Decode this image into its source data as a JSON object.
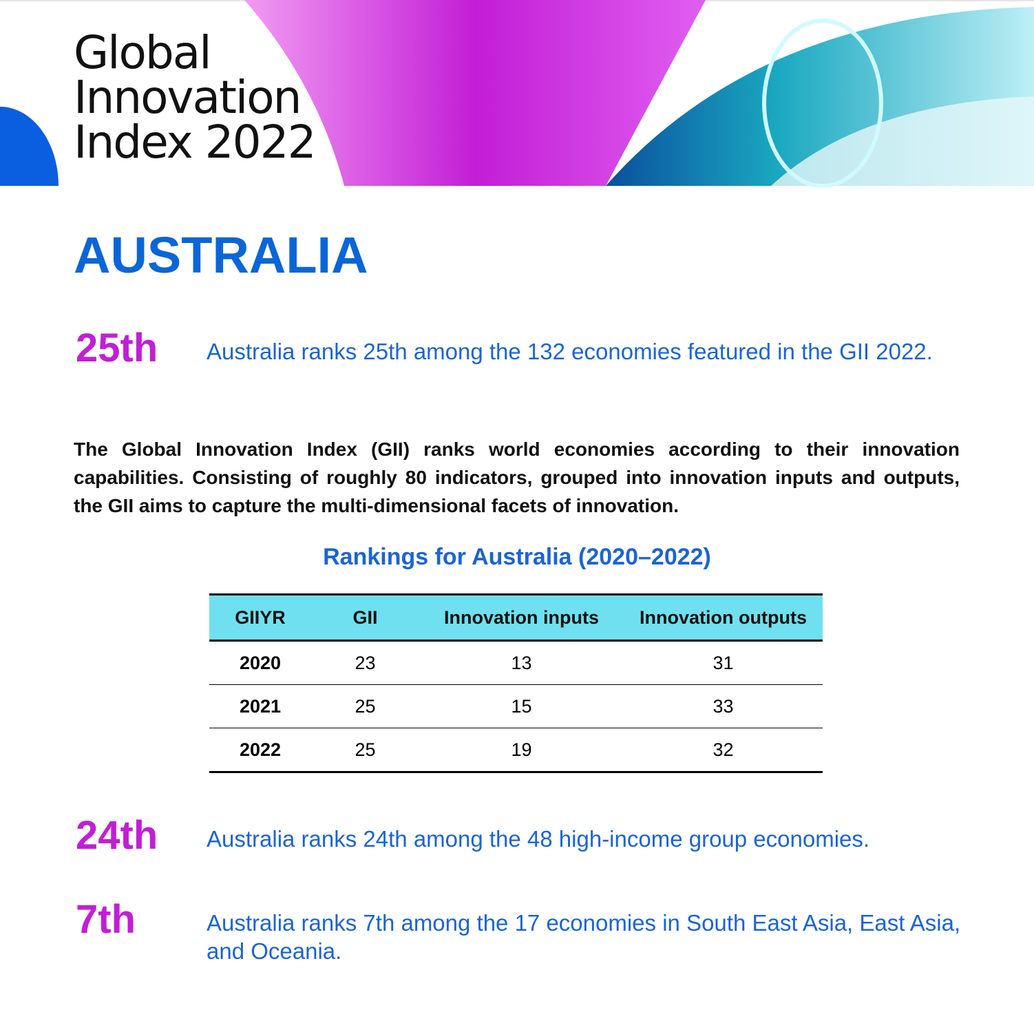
{
  "header": {
    "title_lines": [
      "Global",
      "Innovation",
      "Index 2022"
    ]
  },
  "country": "AUSTRALIA",
  "ranks": [
    {
      "rank": "25th",
      "text": "Australia ranks 25th among the 132 economies featured in the GII 2022."
    },
    {
      "rank": "24th",
      "text": "Australia ranks 24th among the 48 high-income group economies."
    },
    {
      "rank": "7th",
      "text": "Australia ranks 7th among the 17 economies in South East Asia, East Asia, and Oceania."
    }
  ],
  "intro": "The Global Innovation Index (GII) ranks world economies according to their innovation capabilities.  Consisting of roughly 80 indicators, grouped into innovation inputs and outputs, the GII aims to capture the multi-dimensional facets of innovation.",
  "table": {
    "title": "Rankings for Australia (2020–2022)",
    "columns": [
      "GIIYR",
      "GII",
      "Innovation inputs",
      "Innovation outputs"
    ],
    "rows": [
      [
        "2020",
        "23",
        "13",
        "31"
      ],
      [
        "2021",
        "25",
        "15",
        "33"
      ],
      [
        "2022",
        "25",
        "19",
        "32"
      ]
    ]
  }
}
